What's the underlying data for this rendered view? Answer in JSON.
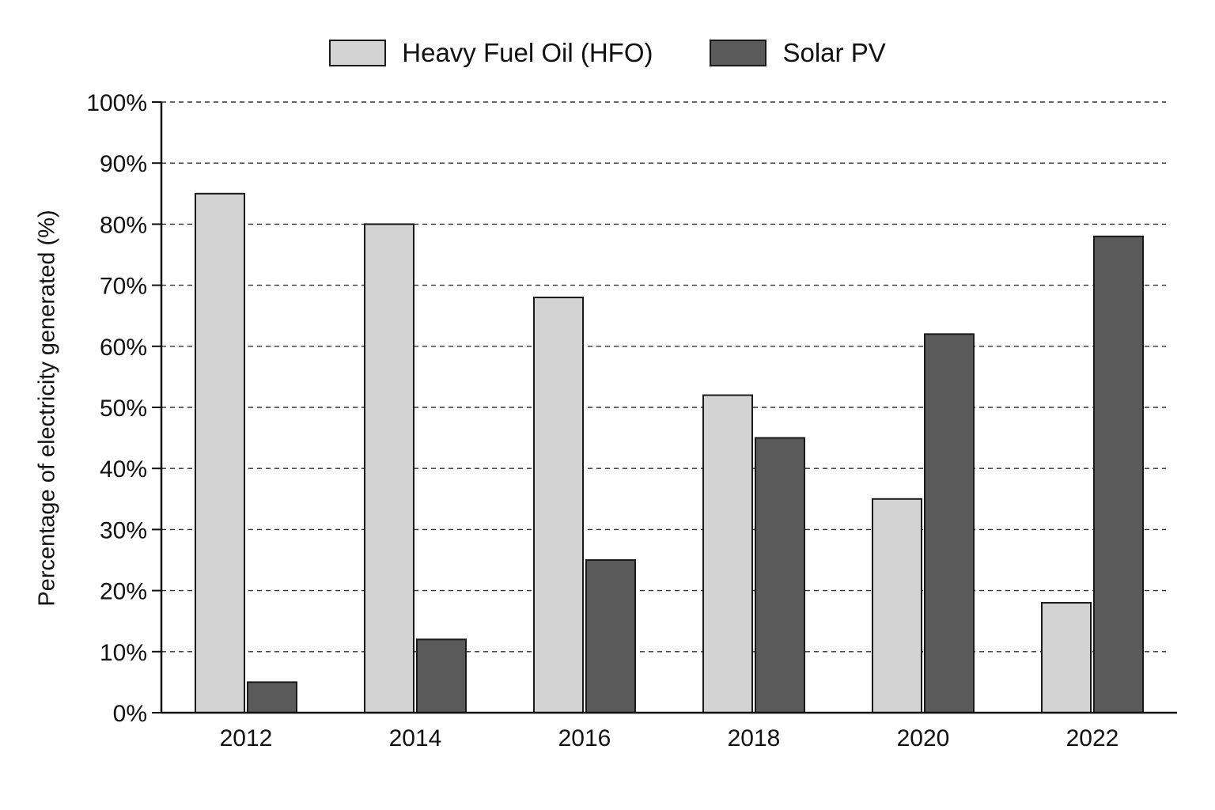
{
  "chart_data": {
    "type": "bar",
    "title": "",
    "xlabel": "",
    "ylabel": "Percentage of electricity generated (%)",
    "categories": [
      "2012",
      "2014",
      "2016",
      "2018",
      "2020",
      "2022"
    ],
    "series": [
      {
        "name": "Heavy Fuel Oil (HFO)",
        "color": "#d3d3d3",
        "values": [
          85,
          80,
          68,
          52,
          35,
          18
        ]
      },
      {
        "name": "Solar PV",
        "color": "#5a5a5a",
        "values": [
          5,
          12,
          25,
          45,
          62,
          78
        ]
      }
    ],
    "ylim": [
      0,
      100
    ],
    "yticks": [
      0,
      10,
      20,
      30,
      40,
      50,
      60,
      70,
      80,
      90,
      100
    ],
    "ytick_suffix": "%",
    "grid": "horizontal dashed",
    "legend_position": "top-center"
  }
}
